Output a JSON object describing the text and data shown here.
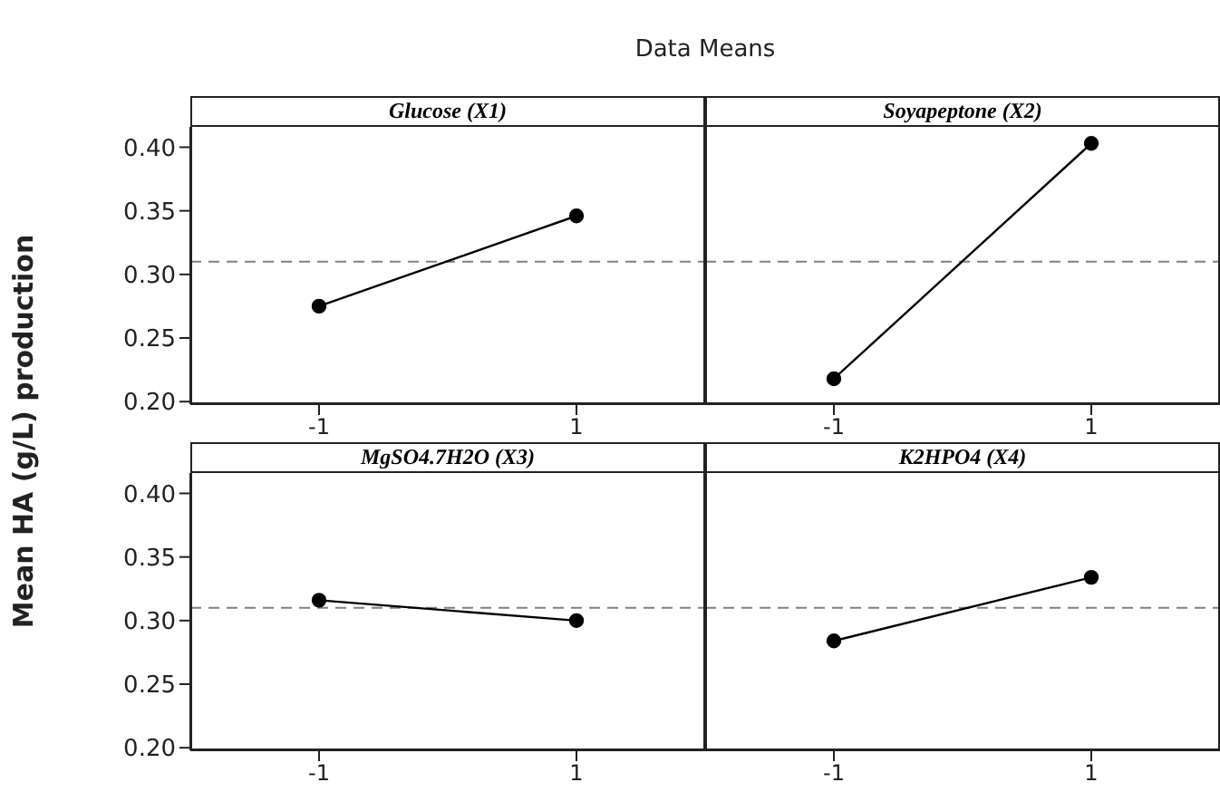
{
  "chart_data": [
    {
      "type": "line",
      "title": "Glucose (X1)",
      "annotations": [
        "Data Means"
      ],
      "ylabel": "Mean HA (g/L) production",
      "categories": [
        "-1",
        "1"
      ],
      "series": [
        {
          "color": "#000000",
          "values": [
            0.275,
            0.346
          ]
        }
      ],
      "ylim": [
        0.198,
        0.416
      ],
      "yticks": [
        {
          "value": 0.2,
          "label": "0.20"
        },
        {
          "value": 0.25,
          "label": "0.25"
        },
        {
          "value": 0.3,
          "label": "0.30"
        },
        {
          "value": 0.35,
          "label": "0.35"
        },
        {
          "value": 0.4,
          "label": "0.40"
        }
      ],
      "ref_lines": [
        {
          "axis": "y",
          "value": 0.31,
          "color": "#808080",
          "line_style": "dashed"
        }
      ],
      "marker": "circle",
      "line_style": "solid",
      "grid": false,
      "legend": false
    },
    {
      "type": "line",
      "title": "Soyapeptone (X2)",
      "categories": [
        "-1",
        "1"
      ],
      "series": [
        {
          "color": "#000000",
          "values": [
            0.218,
            0.403
          ]
        }
      ],
      "ylim": [
        0.198,
        0.416
      ],
      "tick_labels": "x",
      "ref_lines": [
        {
          "axis": "y",
          "value": 0.31,
          "color": "#808080",
          "line_style": "dashed"
        }
      ],
      "marker": "circle",
      "line_style": "solid",
      "grid": false,
      "legend": false
    },
    {
      "type": "line",
      "title": "MgSO4.7H2O (X3)",
      "categories": [
        "-1",
        "1"
      ],
      "series": [
        {
          "color": "#000000",
          "values": [
            0.316,
            0.3
          ]
        }
      ],
      "ylim": [
        0.198,
        0.416
      ],
      "yticks": [
        {
          "value": 0.2,
          "label": "0.20"
        },
        {
          "value": 0.25,
          "label": "0.25"
        },
        {
          "value": 0.3,
          "label": "0.30"
        },
        {
          "value": 0.35,
          "label": "0.35"
        },
        {
          "value": 0.4,
          "label": "0.40"
        }
      ],
      "ref_lines": [
        {
          "axis": "y",
          "value": 0.31,
          "color": "#808080",
          "line_style": "dashed"
        }
      ],
      "marker": "circle",
      "line_style": "solid",
      "grid": false,
      "legend": false
    },
    {
      "type": "line",
      "title": "K2HPO4 (X4)",
      "categories": [
        "-1",
        "1"
      ],
      "series": [
        {
          "color": "#000000",
          "values": [
            0.284,
            0.334
          ]
        }
      ],
      "ylim": [
        0.198,
        0.416
      ],
      "tick_labels": "x",
      "ref_lines": [
        {
          "axis": "y",
          "value": 0.31,
          "color": "#808080",
          "line_style": "dashed"
        }
      ],
      "marker": "circle",
      "line_style": "solid",
      "grid": false,
      "legend": false
    }
  ]
}
